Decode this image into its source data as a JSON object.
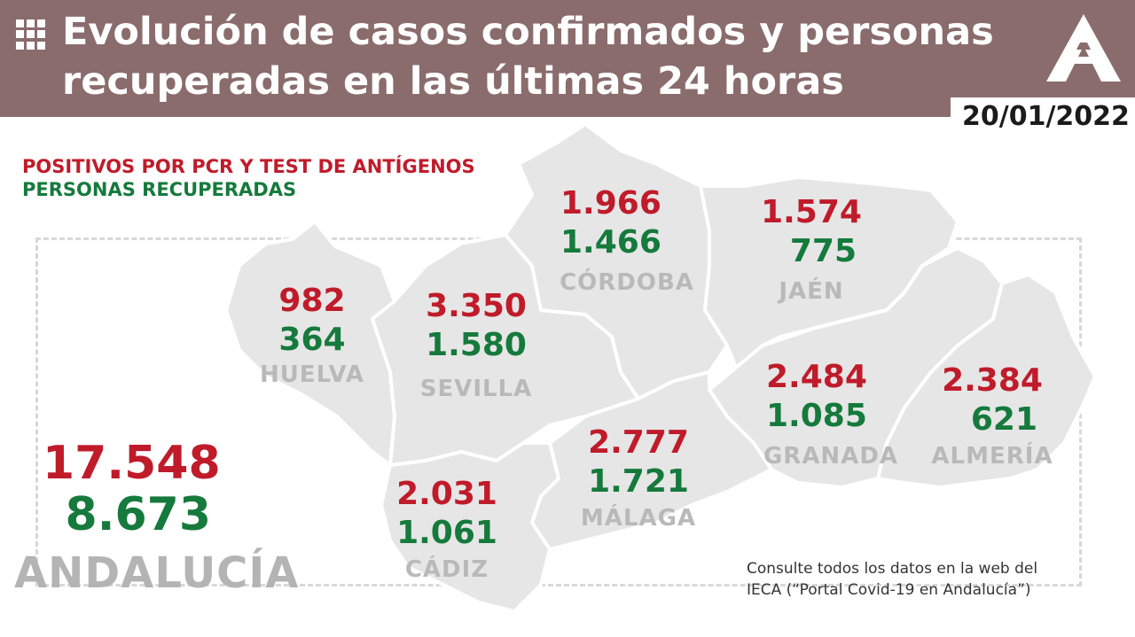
{
  "header": {
    "title_line1": "Evolución de casos confirmados y personas",
    "title_line2": "recuperadas en las últimas 24 horas",
    "date": "20/01/2022",
    "icon": "grid-icon",
    "logo": "junta-andalucia-logo",
    "bg_color": "#8a6c6c"
  },
  "legend": {
    "positives": "POSITIVOS POR PCR Y TEST DE ANTÍGENOS",
    "recovered": "PERSONAS RECUPERADAS",
    "positives_color": "#c01b2a",
    "recovered_color": "#157a3c"
  },
  "provinces": {
    "huelva": {
      "name": "HUELVA",
      "positives": "982",
      "recovered": "364"
    },
    "sevilla": {
      "name": "SEVILLA",
      "positives": "3.350",
      "recovered": "1.580"
    },
    "cordoba": {
      "name": "CÓRDOBA",
      "positives": "1.966",
      "recovered": "1.466"
    },
    "jaen": {
      "name": "JAÉN",
      "positives": "1.574",
      "recovered": "775"
    },
    "granada": {
      "name": "GRANADA",
      "positives": "2.484",
      "recovered": "1.085"
    },
    "almeria": {
      "name": "ALMERÍA",
      "positives": "2.384",
      "recovered": "621"
    },
    "malaga": {
      "name": "MÁLAGA",
      "positives": "2.777",
      "recovered": "1.721"
    },
    "cadiz": {
      "name": "CÁDIZ",
      "positives": "2.031",
      "recovered": "1.061"
    }
  },
  "total": {
    "name": "ANDALUCÍA",
    "positives": "17.548",
    "recovered": "8.673"
  },
  "note": "Consulte todos los datos en la web del\nIECA (“Portal Covid-19 en Andalucía”)"
}
